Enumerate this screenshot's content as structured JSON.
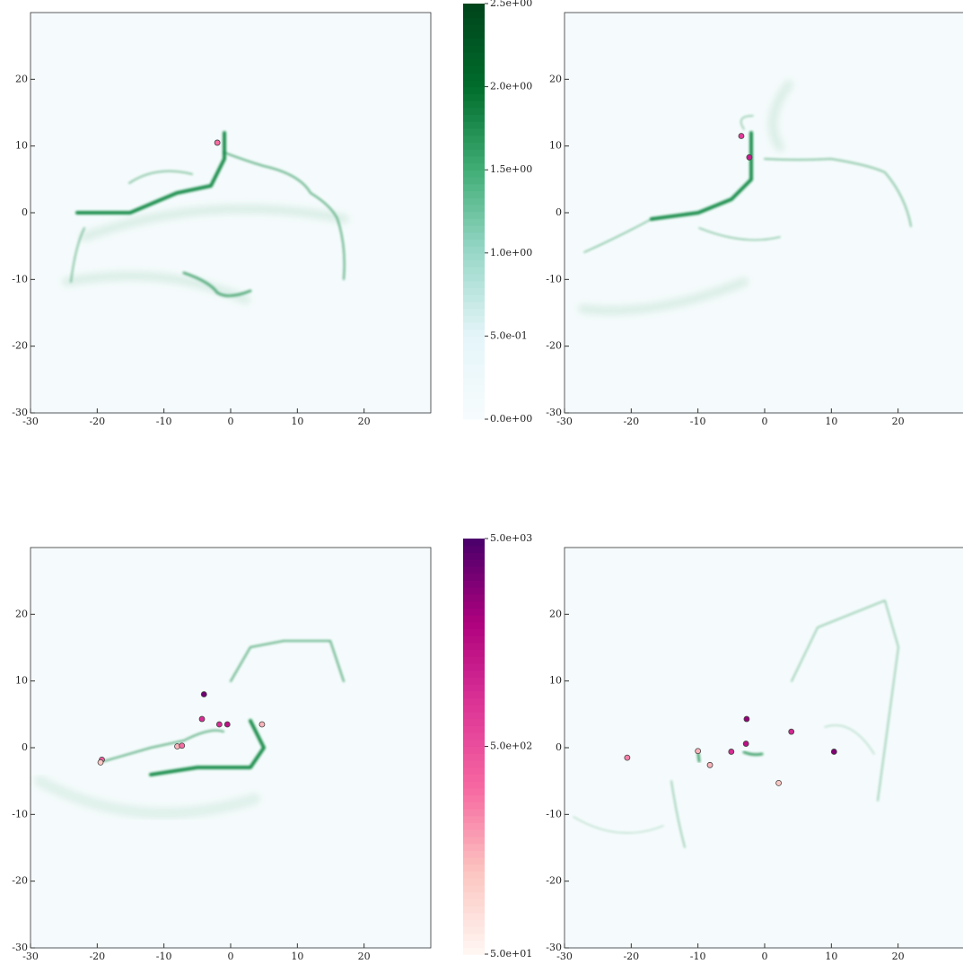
{
  "chart_data": [
    {
      "type": "scatter",
      "xlim": [
        -30,
        30
      ],
      "ylim": [
        -30,
        30
      ],
      "xticks": [
        -30,
        -20,
        -10,
        0,
        10,
        20
      ],
      "yticks": [
        -30,
        -20,
        -10,
        0,
        10,
        20
      ],
      "x": [
        -2
      ],
      "y": [
        10.5
      ],
      "c": [
        300
      ]
    },
    {
      "type": "scatter",
      "xlim": [
        -30,
        30
      ],
      "ylim": [
        -30,
        30
      ],
      "xticks": [
        -30,
        -20,
        -10,
        0,
        10,
        20
      ],
      "yticks": [
        -30,
        -20,
        -10,
        0,
        10,
        20
      ],
      "x": [
        -3.5,
        -2.3
      ],
      "y": [
        11.5,
        8.3
      ],
      "c": [
        700,
        1200
      ]
    },
    {
      "type": "scatter",
      "xlim": [
        -30,
        30
      ],
      "ylim": [
        -30,
        30
      ],
      "xticks": [
        -30,
        -20,
        -10,
        0,
        10,
        20
      ],
      "yticks": [
        -30,
        -20,
        -10,
        0,
        10,
        20
      ],
      "x": [
        -4,
        -4.3,
        -1.7,
        -0.5,
        4.7,
        -8,
        -7.3,
        -19.3,
        -19.5
      ],
      "y": [
        8,
        4.3,
        3.5,
        3.5,
        3.5,
        0.2,
        0.3,
        -1.8,
        -2.2
      ],
      "c": [
        3500,
        900,
        900,
        1500,
        150,
        150,
        300,
        400,
        120
      ]
    },
    {
      "type": "scatter",
      "xlim": [
        -30,
        30
      ],
      "ylim": [
        -30,
        30
      ],
      "xticks": [
        -30,
        -20,
        -10,
        0,
        10,
        20
      ],
      "yticks": [
        -30,
        -20,
        -10,
        0,
        10,
        20
      ],
      "x": [
        -20.6,
        -10,
        -8.2,
        -5,
        -2.7,
        -2.8,
        4,
        10.4,
        2.1
      ],
      "y": [
        -1.5,
        -0.5,
        -2.6,
        -0.6,
        4.3,
        0.6,
        2.4,
        -0.6,
        -5.3
      ],
      "c": [
        250,
        150,
        150,
        900,
        2500,
        1500,
        1000,
        3000,
        120
      ]
    },
    {
      "type": "colorbar",
      "lim": [
        0,
        2.5
      ],
      "colors": [
        "#f7fcfd",
        "#e5f5f9",
        "#99d8c9",
        "#41ae76",
        "#006d2c",
        "#00441b"
      ],
      "ticks": [
        {
          "value": 0,
          "label": "0.0e+00"
        },
        {
          "value": 0.5,
          "label": "5.0e-01"
        },
        {
          "value": 1,
          "label": "1.0e+00"
        },
        {
          "value": 1.5,
          "label": "1.5e+00"
        },
        {
          "value": 2,
          "label": "2.0e+00"
        },
        {
          "value": 2.5,
          "label": "2.5e+00"
        }
      ]
    },
    {
      "type": "colorbar",
      "log": true,
      "lim": [
        50,
        5000
      ],
      "colors": [
        "#fff7f3",
        "#fcc5c0",
        "#f768a1",
        "#dd3497",
        "#ae017e",
        "#49006a"
      ],
      "ticks": [
        {
          "value": 50,
          "label": "5.0e+01"
        },
        {
          "value": 500,
          "label": "5.0e+02"
        },
        {
          "value": 5000,
          "label": "5.0e+03"
        }
      ]
    }
  ]
}
